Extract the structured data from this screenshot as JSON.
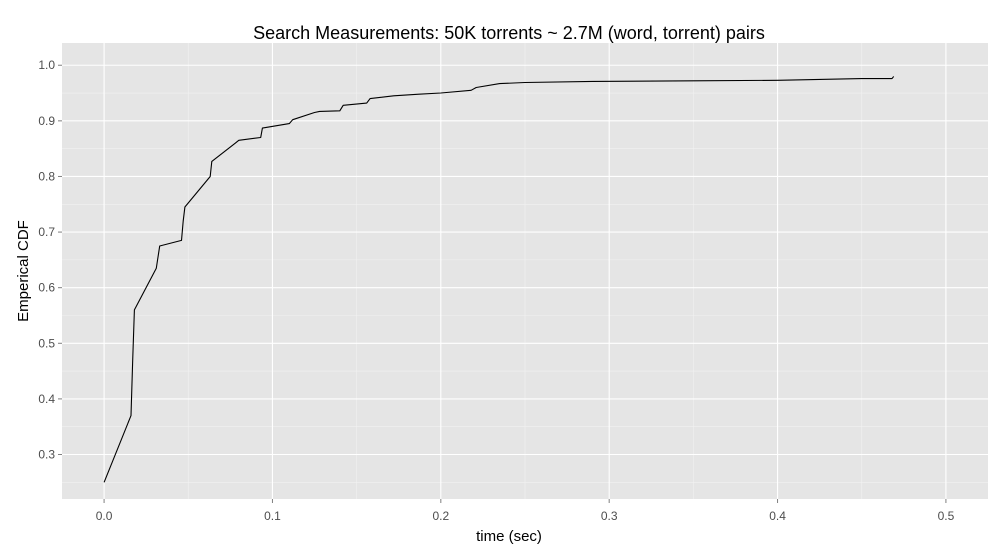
{
  "chart_data": {
    "type": "line",
    "title": "Search Measurements: 50K torrents ~ 2.7M (word, torrent) pairs",
    "xlabel": "time (sec)",
    "ylabel": "Emperical CDF",
    "xlim": [
      -0.025,
      0.525
    ],
    "ylim": [
      0.22,
      1.04
    ],
    "x_ticks": [
      0.0,
      0.1,
      0.2,
      0.3,
      0.4,
      0.5
    ],
    "x_tick_labels": [
      "0.0",
      "0.1",
      "0.2",
      "0.3",
      "0.4",
      "0.5"
    ],
    "y_ticks": [
      0.3,
      0.4,
      0.5,
      0.6,
      0.7,
      0.8,
      0.9,
      1.0
    ],
    "y_tick_labels": [
      "0.3",
      "0.4",
      "0.5",
      "0.6",
      "0.7",
      "0.8",
      "0.9",
      "1.0"
    ],
    "grid": true,
    "background": "#e5e5e5",
    "gridline_color": "#ffffff",
    "line_color": "#000000",
    "series": [
      {
        "x": [
          0.0,
          0.016,
          0.017,
          0.018,
          0.031,
          0.033,
          0.046,
          0.047,
          0.048,
          0.063,
          0.064,
          0.078,
          0.08,
          0.093,
          0.094,
          0.11,
          0.112,
          0.125,
          0.128,
          0.14,
          0.142,
          0.156,
          0.158,
          0.172,
          0.187,
          0.2,
          0.218,
          0.221,
          0.235,
          0.25,
          0.29,
          0.35,
          0.4,
          0.45,
          0.468,
          0.469
        ],
        "y": [
          0.25,
          0.37,
          0.47,
          0.56,
          0.635,
          0.675,
          0.685,
          0.72,
          0.745,
          0.8,
          0.827,
          0.86,
          0.865,
          0.87,
          0.887,
          0.895,
          0.902,
          0.915,
          0.917,
          0.918,
          0.928,
          0.932,
          0.94,
          0.945,
          0.948,
          0.95,
          0.955,
          0.96,
          0.967,
          0.969,
          0.971,
          0.972,
          0.973,
          0.976,
          0.976,
          0.98
        ]
      }
    ]
  }
}
